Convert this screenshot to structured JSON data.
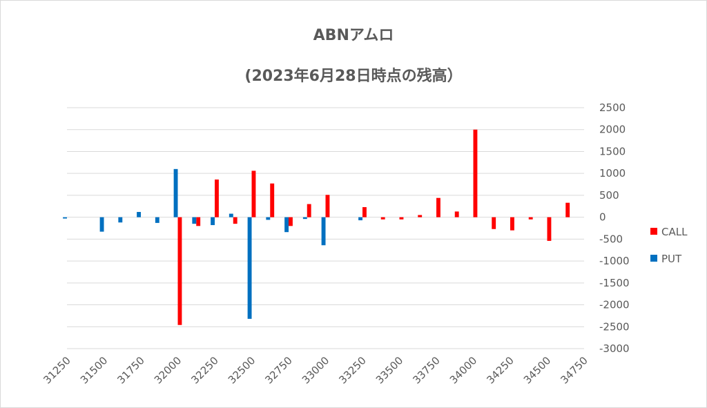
{
  "chart_data": {
    "type": "bar",
    "title": "ABNアムロ",
    "subtitle": "(2023年6月28日時点の残高）",
    "x": [
      31250,
      31375,
      31500,
      31625,
      31750,
      31875,
      32000,
      32125,
      32250,
      32375,
      32500,
      32625,
      32750,
      32875,
      33000,
      33125,
      33250,
      33375,
      33500,
      33625,
      33750,
      33875,
      34000,
      34125,
      34250,
      34375,
      34500,
      34625
    ],
    "x_tick_labels": [
      "31250",
      "31500",
      "31750",
      "32000",
      "32250",
      "32500",
      "32750",
      "33000",
      "33250",
      "33500",
      "33750",
      "34000",
      "34250",
      "34500",
      "34750"
    ],
    "ylim": [
      -3000,
      2500
    ],
    "y_ticks": [
      2500,
      2000,
      1500,
      1000,
      500,
      0,
      -500,
      -1000,
      -1500,
      -2000,
      -2500,
      -3000
    ],
    "grid": true,
    "legend": "right",
    "series": [
      {
        "name": "CALL",
        "color": "#ff0000",
        "values": [
          0,
          0,
          0,
          0,
          0,
          0,
          -2460,
          -200,
          860,
          -150,
          1060,
          770,
          -200,
          300,
          510,
          0,
          230,
          -50,
          -50,
          50,
          440,
          130,
          2000,
          -270,
          -300,
          -50,
          -540,
          330
        ]
      },
      {
        "name": "PUT",
        "color": "#0070c0",
        "values": [
          -30,
          0,
          -330,
          -120,
          120,
          -130,
          1100,
          -150,
          -180,
          80,
          -2320,
          -60,
          -340,
          -40,
          -640,
          0,
          -70,
          0,
          0,
          0,
          0,
          0,
          0,
          0,
          0,
          0,
          0,
          0
        ]
      }
    ]
  }
}
